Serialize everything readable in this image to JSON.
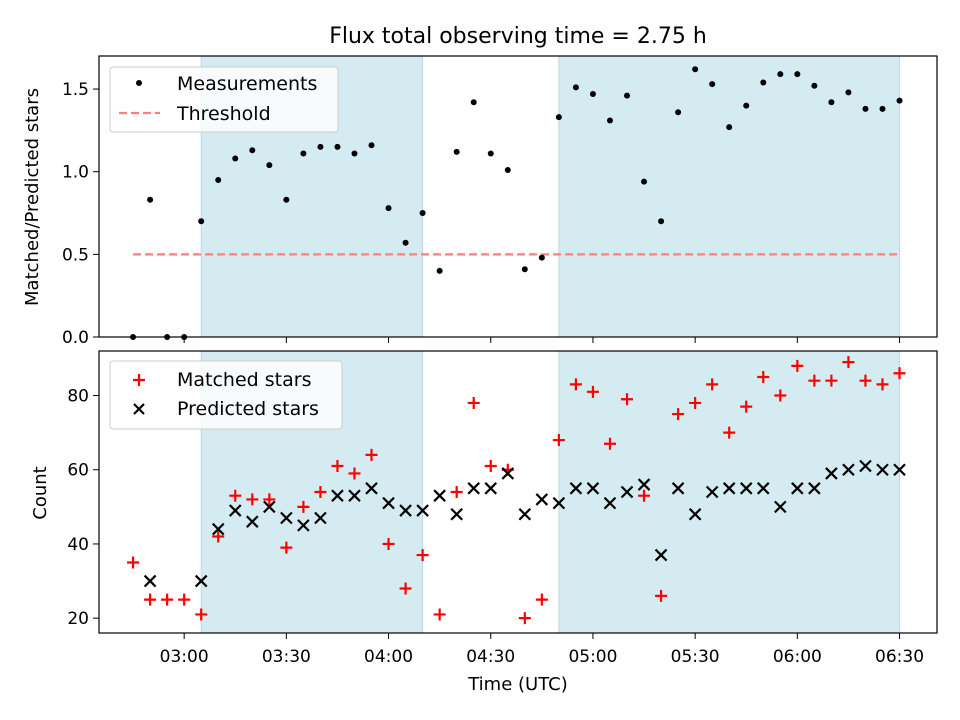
{
  "chart_data": [
    {
      "type": "scatter",
      "title": "Flux total observing time = 2.75 h",
      "xlabel": "",
      "ylabel": "Matched/Predicted stars",
      "x_unit": "time (UTC)",
      "ylim": [
        0,
        1.7
      ],
      "yticks": [
        "0.0",
        "0.5",
        "1.0",
        "1.5"
      ],
      "shaded_spans": [
        [
          "03:05",
          "04:10"
        ],
        [
          "04:50",
          "06:30"
        ]
      ],
      "shade_color": "#d4ebf1",
      "legend_location": "upper-left",
      "series": [
        {
          "name": "Measurements",
          "style": "points",
          "color": "#000000",
          "x": [
            "02:45",
            "02:50",
            "02:55",
            "03:00",
            "03:05",
            "03:10",
            "03:15",
            "03:20",
            "03:25",
            "03:30",
            "03:35",
            "03:40",
            "03:45",
            "03:50",
            "03:55",
            "04:00",
            "04:05",
            "04:10",
            "04:15",
            "04:20",
            "04:25",
            "04:30",
            "04:35",
            "04:40",
            "04:45",
            "04:50",
            "04:55",
            "05:00",
            "05:05",
            "05:10",
            "05:15",
            "05:20",
            "05:25",
            "05:30",
            "05:35",
            "05:40",
            "05:45",
            "05:50",
            "05:55",
            "06:00",
            "06:05",
            "06:10",
            "06:15",
            "06:20",
            "06:25",
            "06:30"
          ],
          "y": [
            0.0,
            0.83,
            0.0,
            0.0,
            0.7,
            0.95,
            1.08,
            1.13,
            1.04,
            0.83,
            1.11,
            1.15,
            1.15,
            1.11,
            1.16,
            0.78,
            0.57,
            0.75,
            0.4,
            1.12,
            1.42,
            1.11,
            1.01,
            0.41,
            0.48,
            1.33,
            1.51,
            1.47,
            1.31,
            1.46,
            0.94,
            0.7,
            1.36,
            1.62,
            1.53,
            1.27,
            1.4,
            1.54,
            1.59,
            1.59,
            1.52,
            1.42,
            1.48,
            1.38,
            1.38,
            1.43
          ]
        },
        {
          "name": "Threshold",
          "style": "dashed-line",
          "color": "#ff7f7f",
          "x": [
            "02:45",
            "06:30"
          ],
          "y": [
            0.5,
            0.5
          ]
        }
      ]
    },
    {
      "type": "scatter",
      "title": "",
      "xlabel": "Time (UTC)",
      "ylabel": "Count",
      "ylim": [
        16,
        92
      ],
      "yticks": [
        "20",
        "40",
        "60",
        "80"
      ],
      "xticks": [
        "03:00",
        "03:30",
        "04:00",
        "04:30",
        "05:00",
        "05:30",
        "06:00",
        "06:30"
      ],
      "xlim": [
        "02:35",
        "06:41"
      ],
      "shaded_spans": [
        [
          "03:05",
          "04:10"
        ],
        [
          "04:50",
          "06:30"
        ]
      ],
      "shade_color": "#d4ebf1",
      "legend_location": "upper-left",
      "series": [
        {
          "name": "Matched stars",
          "marker": "plus",
          "color": "#ff0000",
          "x": [
            "02:45",
            "02:50",
            "02:55",
            "03:00",
            "03:05",
            "03:10",
            "03:15",
            "03:20",
            "03:25",
            "03:30",
            "03:35",
            "03:40",
            "03:45",
            "03:50",
            "03:55",
            "04:00",
            "04:05",
            "04:10",
            "04:15",
            "04:20",
            "04:25",
            "04:30",
            "04:35",
            "04:40",
            "04:45",
            "04:50",
            "04:55",
            "05:00",
            "05:05",
            "05:10",
            "05:15",
            "05:20",
            "05:25",
            "05:30",
            "05:35",
            "05:40",
            "05:45",
            "05:50",
            "05:55",
            "06:00",
            "06:05",
            "06:10",
            "06:15",
            "06:20",
            "06:25",
            "06:30"
          ],
          "y": [
            35,
            25,
            25,
            25,
            21,
            42,
            53,
            52,
            52,
            39,
            50,
            54,
            61,
            59,
            64,
            40,
            28,
            37,
            21,
            54,
            78,
            61,
            60,
            20,
            25,
            68,
            83,
            81,
            67,
            79,
            53,
            26,
            75,
            78,
            83,
            70,
            77,
            85,
            80,
            88,
            84,
            84,
            89,
            84,
            83,
            86
          ]
        },
        {
          "name": "Predicted stars",
          "marker": "x",
          "color": "#000000",
          "x": [
            "02:50",
            "03:05",
            "03:10",
            "03:15",
            "03:20",
            "03:25",
            "03:30",
            "03:35",
            "03:40",
            "03:45",
            "03:50",
            "03:55",
            "04:00",
            "04:05",
            "04:10",
            "04:15",
            "04:20",
            "04:25",
            "04:30",
            "04:35",
            "04:40",
            "04:45",
            "04:50",
            "04:55",
            "05:00",
            "05:05",
            "05:10",
            "05:15",
            "05:20",
            "05:25",
            "05:30",
            "05:35",
            "05:40",
            "05:45",
            "05:50",
            "05:55",
            "06:00",
            "06:05",
            "06:10",
            "06:15",
            "06:20",
            "06:25",
            "06:30"
          ],
          "y": [
            30,
            30,
            44,
            49,
            46,
            50,
            47,
            45,
            47,
            53,
            53,
            55,
            51,
            49,
            49,
            53,
            48,
            55,
            55,
            59,
            48,
            52,
            51,
            55,
            55,
            51,
            54,
            56,
            37,
            55,
            48,
            54,
            55,
            55,
            55,
            50,
            55,
            55,
            59,
            60,
            61,
            60,
            60
          ]
        }
      ]
    }
  ]
}
